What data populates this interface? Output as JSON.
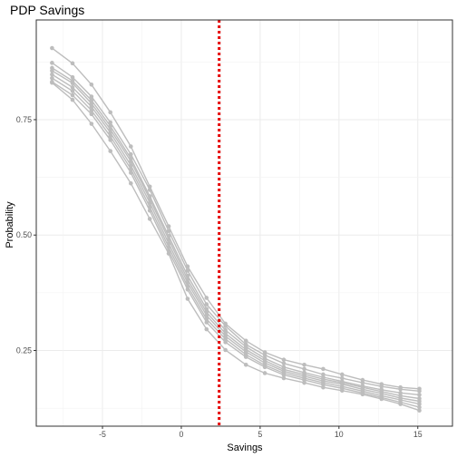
{
  "chart_data": {
    "type": "line",
    "title": "PDP Savings",
    "xlabel": "Savings",
    "ylabel": "Probability",
    "xlim": [
      -9.2,
      17.2
    ],
    "ylim": [
      0.086,
      0.966
    ],
    "x_ticks": [
      -5,
      0,
      5,
      10,
      15
    ],
    "y_ticks": [
      0.25,
      0.5,
      0.75
    ],
    "grid": true,
    "reference_line": {
      "x": 2.4,
      "color": "#e60000",
      "style": "dotted"
    },
    "series_color": "#bdbdbd",
    "x": [
      -8.2,
      -6.9,
      -5.7,
      -4.5,
      -3.2,
      -2.0,
      -0.8,
      0.4,
      1.6,
      2.8,
      4.1,
      5.3,
      6.5,
      7.8,
      9.0,
      10.2,
      11.5,
      12.7,
      13.9,
      15.1
    ],
    "series": [
      {
        "values": [
          0.905,
          0.872,
          0.826,
          0.766,
          0.692,
          0.605,
          0.519,
          0.432,
          0.364,
          0.308,
          0.271,
          0.246,
          0.23,
          0.219,
          0.21,
          0.198,
          0.186,
          0.177,
          0.17,
          0.167
        ]
      },
      {
        "values": [
          0.873,
          0.842,
          0.8,
          0.744,
          0.675,
          0.598,
          0.509,
          0.423,
          0.35,
          0.303,
          0.263,
          0.24,
          0.222,
          0.21,
          0.198,
          0.19,
          0.18,
          0.172,
          0.166,
          0.162
        ]
      },
      {
        "values": [
          0.862,
          0.834,
          0.792,
          0.736,
          0.666,
          0.584,
          0.498,
          0.412,
          0.34,
          0.294,
          0.258,
          0.233,
          0.214,
          0.202,
          0.192,
          0.183,
          0.173,
          0.165,
          0.158,
          0.154
        ]
      },
      {
        "values": [
          0.856,
          0.829,
          0.785,
          0.729,
          0.66,
          0.578,
          0.491,
          0.404,
          0.333,
          0.287,
          0.252,
          0.228,
          0.209,
          0.198,
          0.188,
          0.18,
          0.17,
          0.161,
          0.152,
          0.146
        ]
      },
      {
        "values": [
          0.848,
          0.82,
          0.778,
          0.722,
          0.651,
          0.57,
          0.482,
          0.397,
          0.326,
          0.281,
          0.247,
          0.223,
          0.205,
          0.194,
          0.184,
          0.177,
          0.166,
          0.157,
          0.147,
          0.14
        ]
      },
      {
        "values": [
          0.84,
          0.812,
          0.77,
          0.714,
          0.643,
          0.561,
          0.474,
          0.389,
          0.318,
          0.275,
          0.241,
          0.218,
          0.201,
          0.19,
          0.18,
          0.172,
          0.162,
          0.152,
          0.143,
          0.134
        ]
      },
      {
        "values": [
          0.832,
          0.803,
          0.762,
          0.706,
          0.635,
          0.553,
          0.466,
          0.382,
          0.311,
          0.268,
          0.236,
          0.214,
          0.197,
          0.186,
          0.176,
          0.168,
          0.158,
          0.148,
          0.138,
          0.127
        ]
      },
      {
        "values": [
          0.83,
          0.793,
          0.741,
          0.682,
          0.612,
          0.535,
          0.46,
          0.362,
          0.296,
          0.251,
          0.219,
          0.201,
          0.19,
          0.18,
          0.17,
          0.163,
          0.155,
          0.145,
          0.134,
          0.12
        ]
      }
    ]
  }
}
